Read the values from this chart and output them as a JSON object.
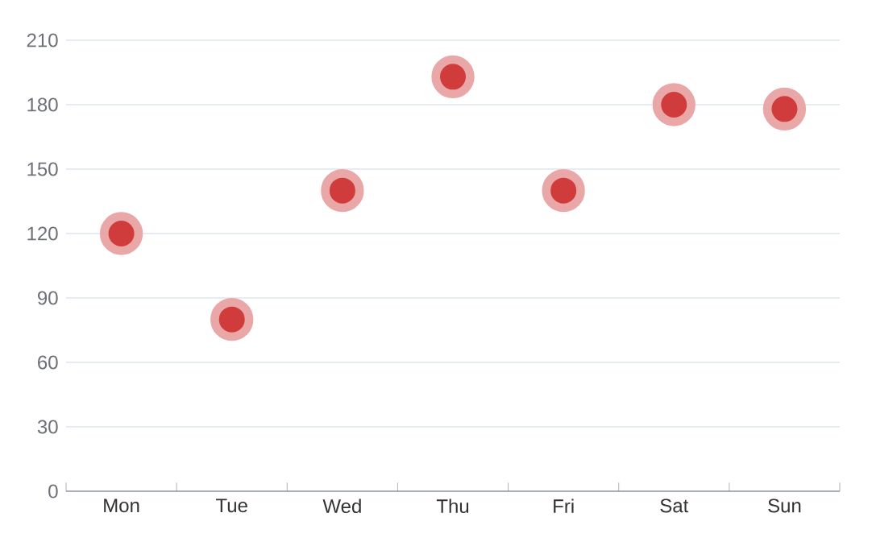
{
  "chart_data": {
    "type": "scatter",
    "categories": [
      "Mon",
      "Tue",
      "Wed",
      "Thu",
      "Fri",
      "Sat",
      "Sun"
    ],
    "values": [
      120,
      80,
      140,
      193,
      140,
      180,
      178
    ],
    "color": "#d03c3c",
    "grid": "y",
    "ylim": [
      0,
      210
    ],
    "yticks": [
      0,
      30,
      60,
      90,
      120,
      150,
      180,
      210
    ]
  }
}
